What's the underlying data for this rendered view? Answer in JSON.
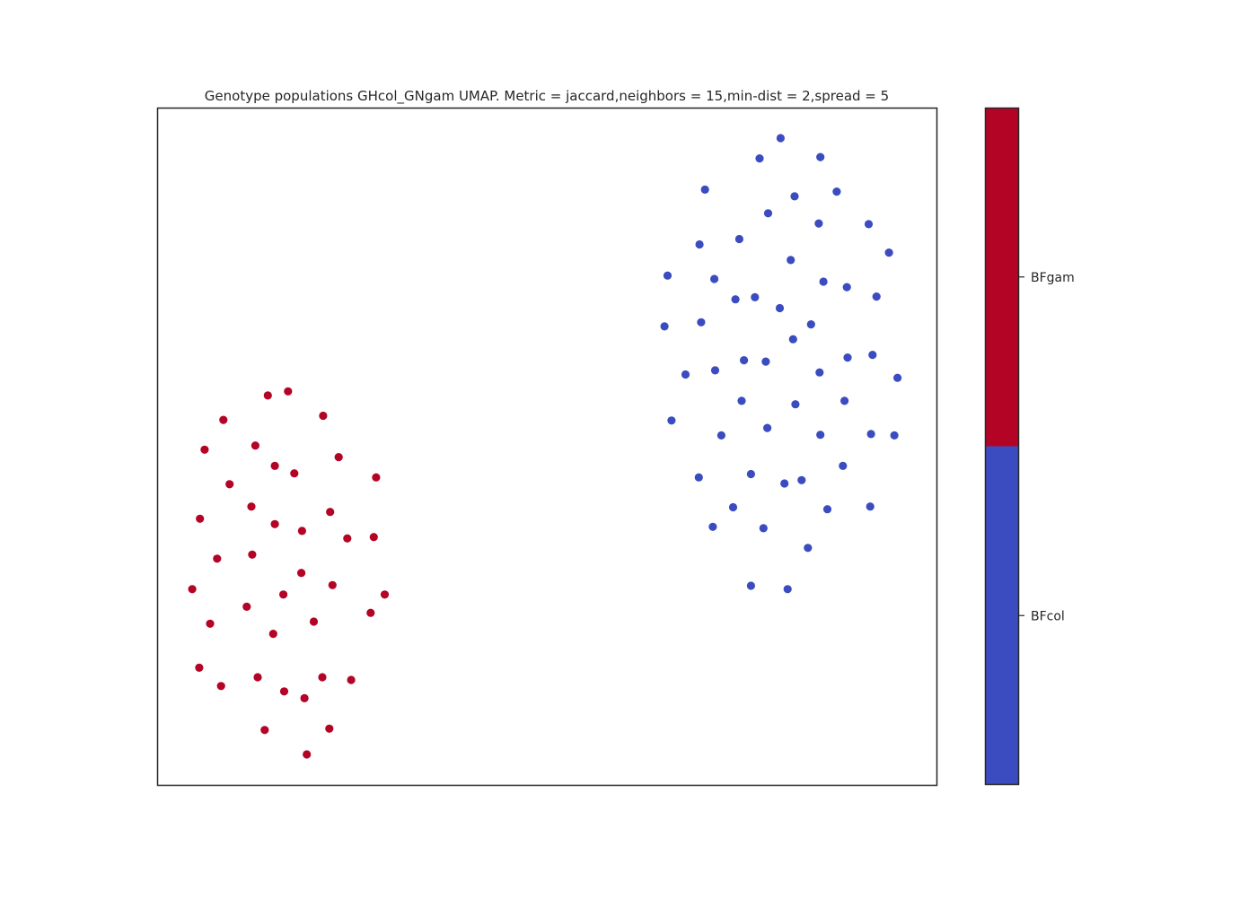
{
  "chart_data": {
    "type": "scatter",
    "title": "Genotype populations GHcol_GNgam UMAP. Metric = jaccard,neighbors = 15,min-dist = 2,spread = 5",
    "xlabel": "",
    "ylabel": "",
    "xlim": [
      0,
      100
    ],
    "ylim": [
      0,
      100
    ],
    "grid": false,
    "colors": {
      "BFcol": "#3b4cc0",
      "BFgam": "#b40426"
    },
    "colorbar": {
      "placement": "right",
      "categories": [
        {
          "label": "BFcol",
          "color": "#3b4cc0"
        },
        {
          "label": "BFgam",
          "color": "#b40426"
        }
      ]
    },
    "series": [
      {
        "category": "BFgam",
        "color": "#b40426",
        "points": [
          [
            14.2,
            57.5
          ],
          [
            16.8,
            58.1
          ],
          [
            8.5,
            53.9
          ],
          [
            21.3,
            54.5
          ],
          [
            6.1,
            49.5
          ],
          [
            12.6,
            50.1
          ],
          [
            15.1,
            47.1
          ],
          [
            17.6,
            46.0
          ],
          [
            23.3,
            48.4
          ],
          [
            28.1,
            45.4
          ],
          [
            9.3,
            44.4
          ],
          [
            12.1,
            41.1
          ],
          [
            5.5,
            39.3
          ],
          [
            15.1,
            38.5
          ],
          [
            18.6,
            37.5
          ],
          [
            22.2,
            40.3
          ],
          [
            24.4,
            36.4
          ],
          [
            27.8,
            36.6
          ],
          [
            7.7,
            33.4
          ],
          [
            12.2,
            34.0
          ],
          [
            4.5,
            28.9
          ],
          [
            18.5,
            31.3
          ],
          [
            22.5,
            29.5
          ],
          [
            16.2,
            28.1
          ],
          [
            11.5,
            26.3
          ],
          [
            29.2,
            28.1
          ],
          [
            27.4,
            25.4
          ],
          [
            6.8,
            23.8
          ],
          [
            14.9,
            22.3
          ],
          [
            20.1,
            24.1
          ],
          [
            5.4,
            17.3
          ],
          [
            8.2,
            14.6
          ],
          [
            12.9,
            15.9
          ],
          [
            16.3,
            13.8
          ],
          [
            21.2,
            15.9
          ],
          [
            18.9,
            12.8
          ],
          [
            24.9,
            15.5
          ],
          [
            13.8,
            8.1
          ],
          [
            22.1,
            8.3
          ],
          [
            19.2,
            4.5
          ]
        ]
      },
      {
        "category": "BFcol",
        "color": "#3b4cc0",
        "points": [
          [
            80.0,
            95.5
          ],
          [
            77.3,
            92.5
          ],
          [
            85.1,
            92.7
          ],
          [
            70.3,
            87.9
          ],
          [
            81.8,
            86.9
          ],
          [
            87.2,
            87.6
          ],
          [
            78.4,
            84.4
          ],
          [
            84.9,
            82.9
          ],
          [
            91.3,
            82.8
          ],
          [
            69.6,
            79.8
          ],
          [
            74.7,
            80.6
          ],
          [
            93.9,
            78.6
          ],
          [
            81.3,
            77.5
          ],
          [
            65.5,
            75.2
          ],
          [
            71.5,
            74.7
          ],
          [
            85.5,
            74.3
          ],
          [
            88.5,
            73.5
          ],
          [
            74.2,
            71.7
          ],
          [
            76.7,
            72.0
          ],
          [
            92.3,
            72.1
          ],
          [
            79.9,
            70.4
          ],
          [
            65.1,
            67.7
          ],
          [
            69.8,
            68.3
          ],
          [
            83.9,
            68.0
          ],
          [
            81.6,
            65.8
          ],
          [
            91.8,
            63.5
          ],
          [
            88.6,
            63.1
          ],
          [
            67.8,
            60.6
          ],
          [
            71.6,
            61.2
          ],
          [
            75.3,
            62.7
          ],
          [
            78.1,
            62.5
          ],
          [
            85.0,
            60.9
          ],
          [
            95.0,
            60.1
          ],
          [
            75.0,
            56.7
          ],
          [
            81.9,
            56.2
          ],
          [
            88.2,
            56.7
          ],
          [
            66.0,
            53.8
          ],
          [
            72.4,
            51.6
          ],
          [
            78.3,
            52.7
          ],
          [
            85.1,
            51.7
          ],
          [
            91.6,
            51.8
          ],
          [
            94.6,
            51.6
          ],
          [
            88.0,
            47.1
          ],
          [
            69.5,
            45.4
          ],
          [
            76.2,
            45.9
          ],
          [
            80.5,
            44.5
          ],
          [
            82.7,
            45.0
          ],
          [
            73.9,
            41.0
          ],
          [
            86.0,
            40.7
          ],
          [
            91.5,
            41.1
          ],
          [
            71.3,
            38.1
          ],
          [
            77.8,
            37.9
          ],
          [
            83.5,
            35.0
          ],
          [
            76.2,
            29.4
          ],
          [
            80.9,
            28.9
          ]
        ]
      }
    ]
  }
}
